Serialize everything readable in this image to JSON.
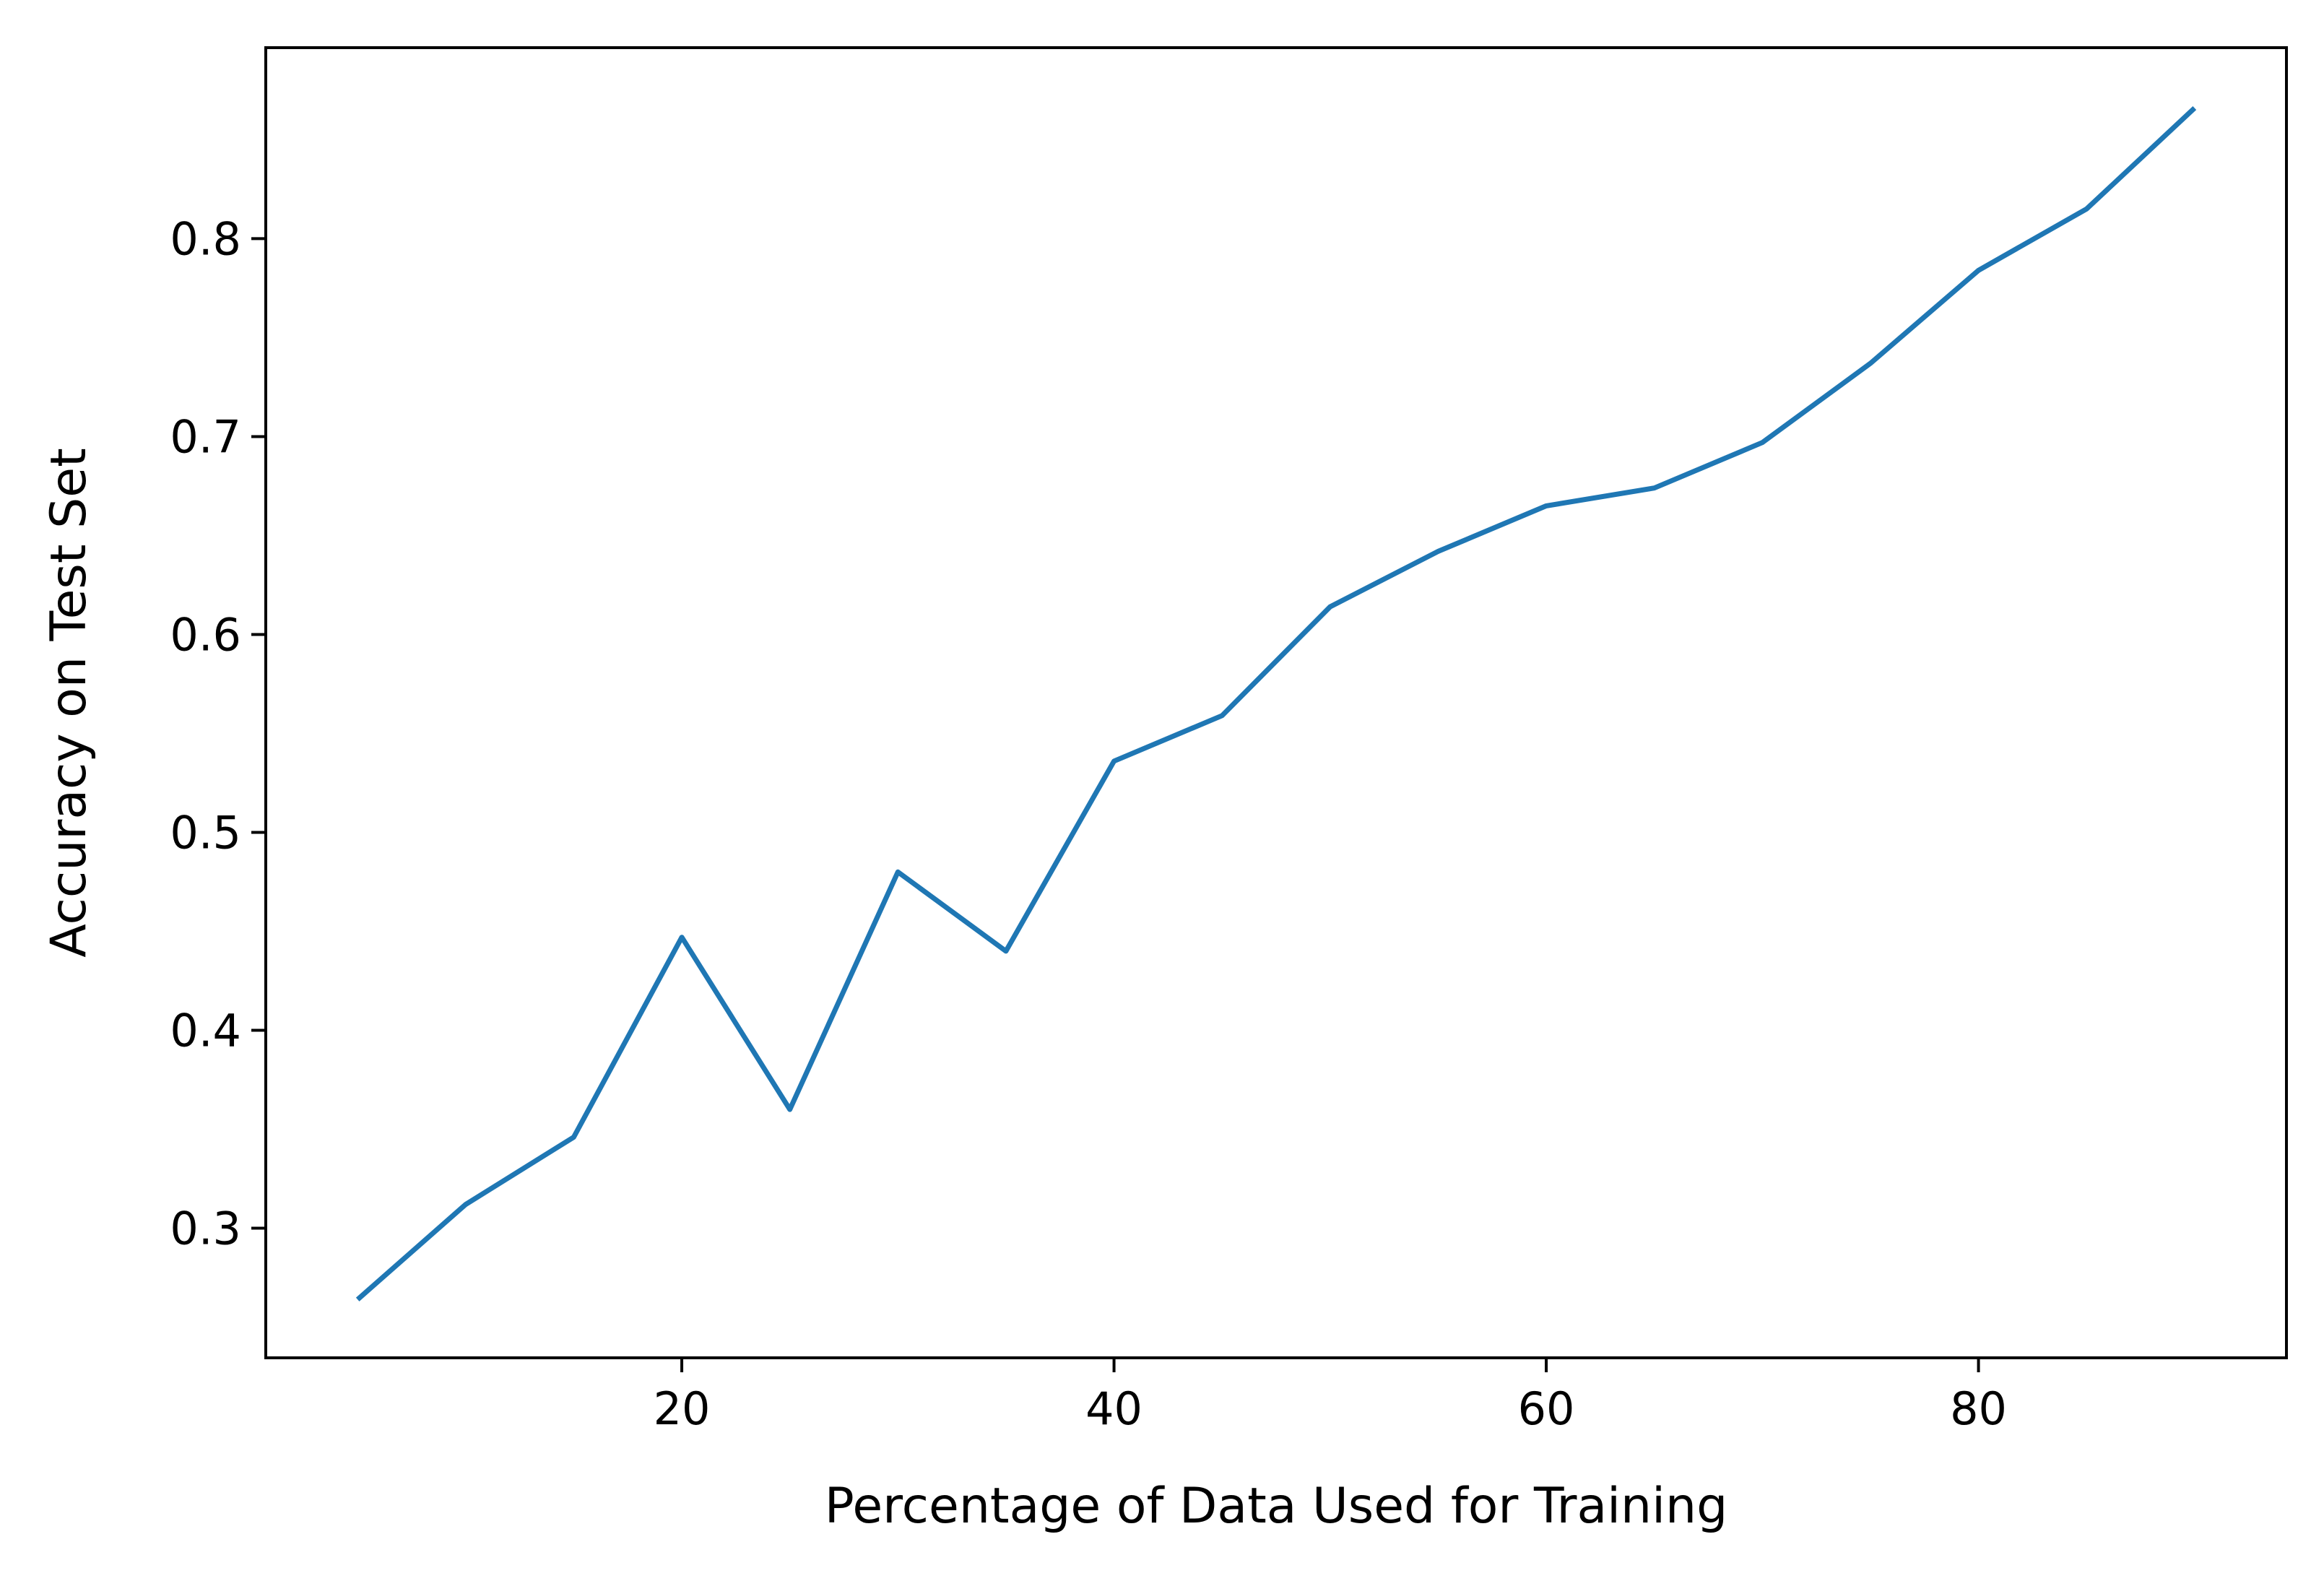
{
  "chart_data": {
    "type": "line",
    "title": "",
    "xlabel": "Percentage of Data Used for Training",
    "ylabel": "Accuracy on Test Set",
    "xlim": [
      0.75,
      94.25
    ],
    "ylim": [
      0.2345,
      0.8965
    ],
    "xticks": [
      20,
      40,
      60,
      80
    ],
    "xtick_labels": [
      "20",
      "40",
      "60",
      "80"
    ],
    "yticks": [
      0.3,
      0.4,
      0.5,
      0.6,
      0.7,
      0.8
    ],
    "ytick_labels": [
      "0.3",
      "0.4",
      "0.5",
      "0.6",
      "0.7",
      "0.8"
    ],
    "grid": false,
    "legend": "none",
    "series": [
      {
        "color": "#1f77b4",
        "x": [
          5,
          10,
          15,
          20,
          25,
          30,
          35,
          40,
          45,
          50,
          55,
          60,
          65,
          70,
          75,
          80,
          85,
          90
        ],
        "y": [
          0.264,
          0.312,
          0.346,
          0.447,
          0.36,
          0.48,
          0.44,
          0.536,
          0.559,
          0.614,
          0.642,
          0.665,
          0.674,
          0.697,
          0.737,
          0.784,
          0.815,
          0.866
        ]
      }
    ]
  }
}
